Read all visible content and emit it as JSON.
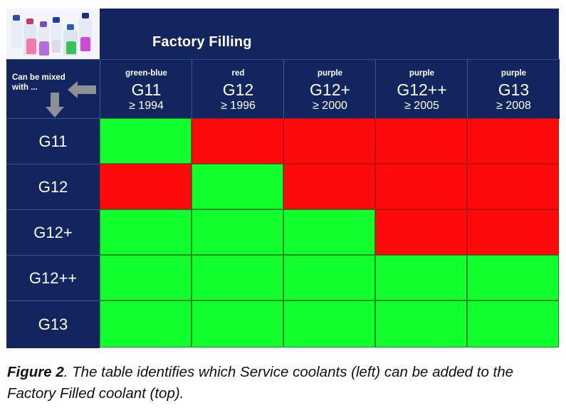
{
  "figure": {
    "factory_title": "Factory Filling",
    "corner_label": "Can be mixed with ...",
    "columns": [
      {
        "color": "green-blue",
        "code": "G11",
        "year": "≥ 1994"
      },
      {
        "color": "red",
        "code": "G12",
        "year": "≥ 1996"
      },
      {
        "color": "purple",
        "code": "G12+",
        "year": "≥ 2000"
      },
      {
        "color": "purple",
        "code": "G12++",
        "year": "≥ 2005"
      },
      {
        "color": "purple",
        "code": "G13",
        "year": "≥ 2008"
      }
    ],
    "rows": [
      "G11",
      "G12",
      "G12+",
      "G12++",
      "G13"
    ],
    "compatibility": [
      [
        true,
        false,
        false,
        false,
        false
      ],
      [
        false,
        true,
        false,
        false,
        false
      ],
      [
        true,
        true,
        true,
        false,
        false
      ],
      [
        true,
        true,
        true,
        true,
        true
      ],
      [
        true,
        true,
        true,
        true,
        true
      ]
    ],
    "colors": {
      "header_bg": "#13255e",
      "compatible": "#12ff2e",
      "incompatible": "#ff0a0a",
      "arrow": "#8e9095"
    }
  },
  "caption": {
    "label": "Figure 2",
    "text": ". The table identifies which Service coolants (left) can be added to the Factory Filled coolant (top)."
  }
}
